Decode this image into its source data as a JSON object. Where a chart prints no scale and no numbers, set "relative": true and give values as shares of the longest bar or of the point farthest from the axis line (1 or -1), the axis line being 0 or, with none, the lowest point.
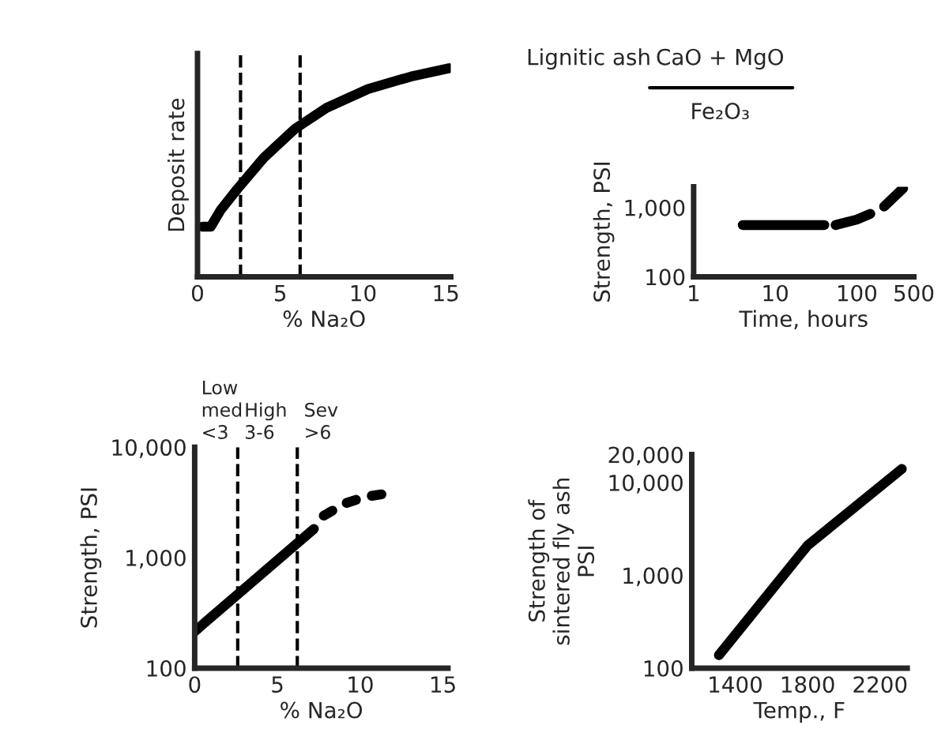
{
  "chart_data": [
    {
      "type": "line",
      "relative": true,
      "xlabel": "% Na₂O",
      "ylabel": "Deposit rate",
      "xlim": [
        0,
        15.3
      ],
      "xticks": [
        0,
        5,
        10,
        15
      ],
      "tick_labels": "x",
      "grid": false,
      "legend": false,
      "series": [
        {
          "color": "#000000",
          "line_style": "solid",
          "x": [
            0.3,
            0.8,
            1.4,
            2.4,
            4.0,
            5.9,
            7.8,
            10.3,
            12.9,
            15.2
          ],
          "values": [
            0.24,
            0.24,
            0.32,
            0.42,
            0.57,
            0.71,
            0.81,
            0.9,
            0.96,
            1.0
          ]
        }
      ],
      "ref_lines": [
        {
          "axis": "x",
          "value": 2.6,
          "line_style": "dashed",
          "color": "#000000"
        },
        {
          "axis": "x",
          "value": 6.2,
          "line_style": "dashed",
          "color": "#000000"
        }
      ]
    },
    {
      "type": "line",
      "title": "Lignitic ash",
      "xlabel": "Time, hours",
      "ylabel": "Strength, PSI",
      "log": "xy",
      "xlim": [
        1,
        500
      ],
      "ylim": [
        100,
        2000
      ],
      "xticks": [
        1,
        10,
        100,
        500
      ],
      "yticks": [
        100,
        {
          "value": 1000,
          "label": "1,000"
        }
      ],
      "grid": false,
      "legend": false,
      "annotations": [
        "CaO + MgO",
        "Fe₂O₃"
      ],
      "series": [
        {
          "color": "#000000",
          "line_style": "solid",
          "x": [
            4,
            40
          ],
          "values": [
            560,
            560
          ]
        },
        {
          "color": "#000000",
          "line_style": "dashed",
          "x": [
            55,
            100,
            200,
            370
          ],
          "values": [
            560,
            670,
            950,
            1900
          ]
        }
      ]
    },
    {
      "type": "line",
      "xlabel": "% Na₂O",
      "ylabel": "Strength, PSI",
      "log": "y",
      "xlim": [
        0,
        15.3
      ],
      "ylim": [
        100,
        10000
      ],
      "xticks": [
        0,
        5,
        10,
        15
      ],
      "yticks": [
        100,
        {
          "value": 1000,
          "label": "1,000"
        },
        {
          "value": 10000,
          "label": "10,000"
        }
      ],
      "grid": false,
      "legend": false,
      "annotations": [
        "Low\nmed\n<3",
        "High\n3-6",
        "Sev\n>6"
      ],
      "series": [
        {
          "color": "#000000",
          "line_style": "solid",
          "x": [
            0,
            7.2
          ],
          "values": [
            215,
            1820
          ]
        },
        {
          "color": "#000000",
          "line_style": "dotted",
          "x": [
            7.8,
            9.1,
            10.3,
            11.6
          ],
          "values": [
            2400,
            3100,
            3550,
            3800
          ]
        }
      ],
      "ref_lines": [
        {
          "axis": "x",
          "value": 2.6,
          "line_style": "dashed",
          "color": "#000000"
        },
        {
          "axis": "x",
          "value": 6.2,
          "line_style": "dashed",
          "color": "#000000"
        }
      ]
    },
    {
      "type": "line",
      "xlabel": "Temp., F",
      "ylabel": "Strength of\nsintered fly ash\nPSI",
      "log": "y",
      "xlim": [
        1160,
        2350
      ],
      "ylim": [
        100,
        20000
      ],
      "xticks": [
        1400,
        1800,
        2200
      ],
      "yticks": [
        100,
        {
          "value": 1000,
          "label": "1,000"
        },
        {
          "value": 10000,
          "label": "10,000"
        },
        {
          "value": 20000,
          "label": "20,000"
        }
      ],
      "grid": false,
      "legend": false,
      "series": [
        {
          "color": "#000000",
          "line_style": "solid",
          "x": [
            1310,
            1800,
            2320
          ],
          "values": [
            138,
            2100,
            14000
          ]
        }
      ]
    }
  ]
}
